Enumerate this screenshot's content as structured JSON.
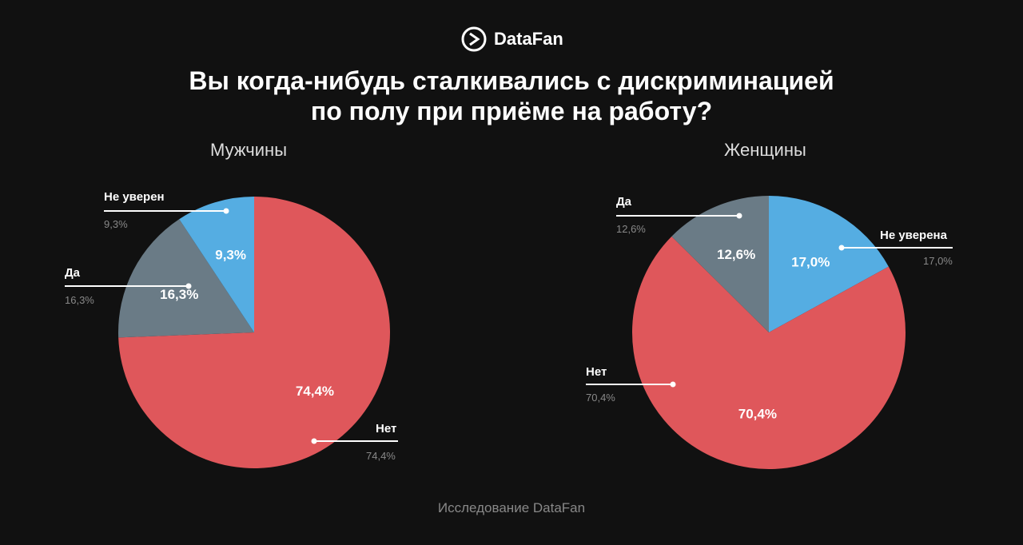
{
  "brand": "DataFan",
  "title_line1": "Вы когда-нибудь сталкивались с дискриминацией",
  "title_line2": "по полу при приёме на работу?",
  "footer": "Исследование DataFan",
  "colors": {
    "Нет": "#df575b",
    "Да": "#6a7b86",
    "Не уверен": "#55ade2",
    "background": "#111111"
  },
  "chart_data": [
    {
      "type": "pie",
      "title": "Мужчины",
      "slices": [
        {
          "label": "Нет",
          "value": 74.4,
          "text": "74,4%"
        },
        {
          "label": "Да",
          "value": 16.3,
          "text": "16,3%"
        },
        {
          "label": "Не уверен",
          "value": 9.3,
          "text": "9,3%"
        }
      ]
    },
    {
      "type": "pie",
      "title": "Женщины",
      "slices": [
        {
          "label": "Не уверена",
          "value": 17.0,
          "text": "17,0%"
        },
        {
          "label": "Нет",
          "value": 70.4,
          "text": "70,4%"
        },
        {
          "label": "Да",
          "value": 12.6,
          "text": "12,6%"
        }
      ]
    }
  ]
}
